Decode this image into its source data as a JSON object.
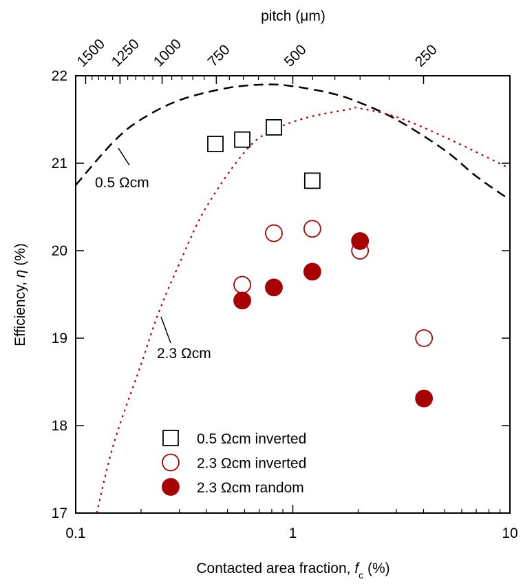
{
  "chart_data": {
    "type": "scatter",
    "top_axis_label": "pitch (μm)",
    "x_label": {
      "prefix": "Contacted area fraction, ",
      "var": "f",
      "sub": "c",
      "suffix": " (%)"
    },
    "y_label": {
      "prefix": "Efficiency, ",
      "var": "η",
      "suffix": " (%)"
    },
    "xscale": "log",
    "xlim": [
      0.1,
      10
    ],
    "xticks": [
      0.1,
      1,
      10
    ],
    "ylim": [
      17,
      22
    ],
    "yticks": [
      17,
      18,
      19,
      20,
      21,
      22
    ],
    "x2ticks": [
      1500,
      1250,
      1000,
      750,
      500,
      250
    ],
    "series": [
      {
        "name": "0.5 Ωcm inverted",
        "marker": "square",
        "color": "#000000",
        "filled": false,
        "x": [
          0.44,
          0.585,
          0.818,
          1.23
        ],
        "values": [
          21.22,
          21.27,
          21.41,
          20.8
        ]
      },
      {
        "name": "2.3 Ωcm inverted",
        "marker": "circle",
        "color": "#a80000",
        "filled": false,
        "x": [
          0.585,
          0.818,
          1.23,
          2.04,
          4.02
        ],
        "values": [
          19.61,
          20.2,
          20.25,
          20.0,
          19.0
        ]
      },
      {
        "name": "2.3 Ωcm random",
        "marker": "circle",
        "color": "#a80000",
        "filled": true,
        "x": [
          0.585,
          0.818,
          1.23,
          2.04,
          4.02
        ],
        "values": [
          19.43,
          19.58,
          19.76,
          20.11,
          18.31
        ]
      }
    ],
    "curves": [
      {
        "label": "0.5 Ωcm",
        "style": "dashed",
        "color": "#000000",
        "x": [
          0.1,
          0.15,
          0.2,
          0.3,
          0.5,
          0.75,
          1,
          1.5,
          2,
          3,
          5,
          7,
          10
        ],
        "values": [
          20.75,
          21.25,
          21.5,
          21.72,
          21.86,
          21.9,
          21.88,
          21.8,
          21.7,
          21.5,
          21.15,
          20.85,
          20.58
        ]
      },
      {
        "label": "2.3 Ωcm",
        "style": "dotted",
        "color": "#b00000",
        "x": [
          0.125,
          0.15,
          0.2,
          0.24,
          0.3,
          0.4,
          0.62,
          0.85,
          1.2,
          1.85,
          2,
          3,
          5,
          10
        ],
        "values": [
          17.0,
          17.8,
          18.7,
          19.28,
          19.85,
          20.5,
          21.17,
          21.4,
          21.53,
          21.62,
          21.63,
          21.53,
          21.3,
          20.94
        ]
      }
    ]
  }
}
